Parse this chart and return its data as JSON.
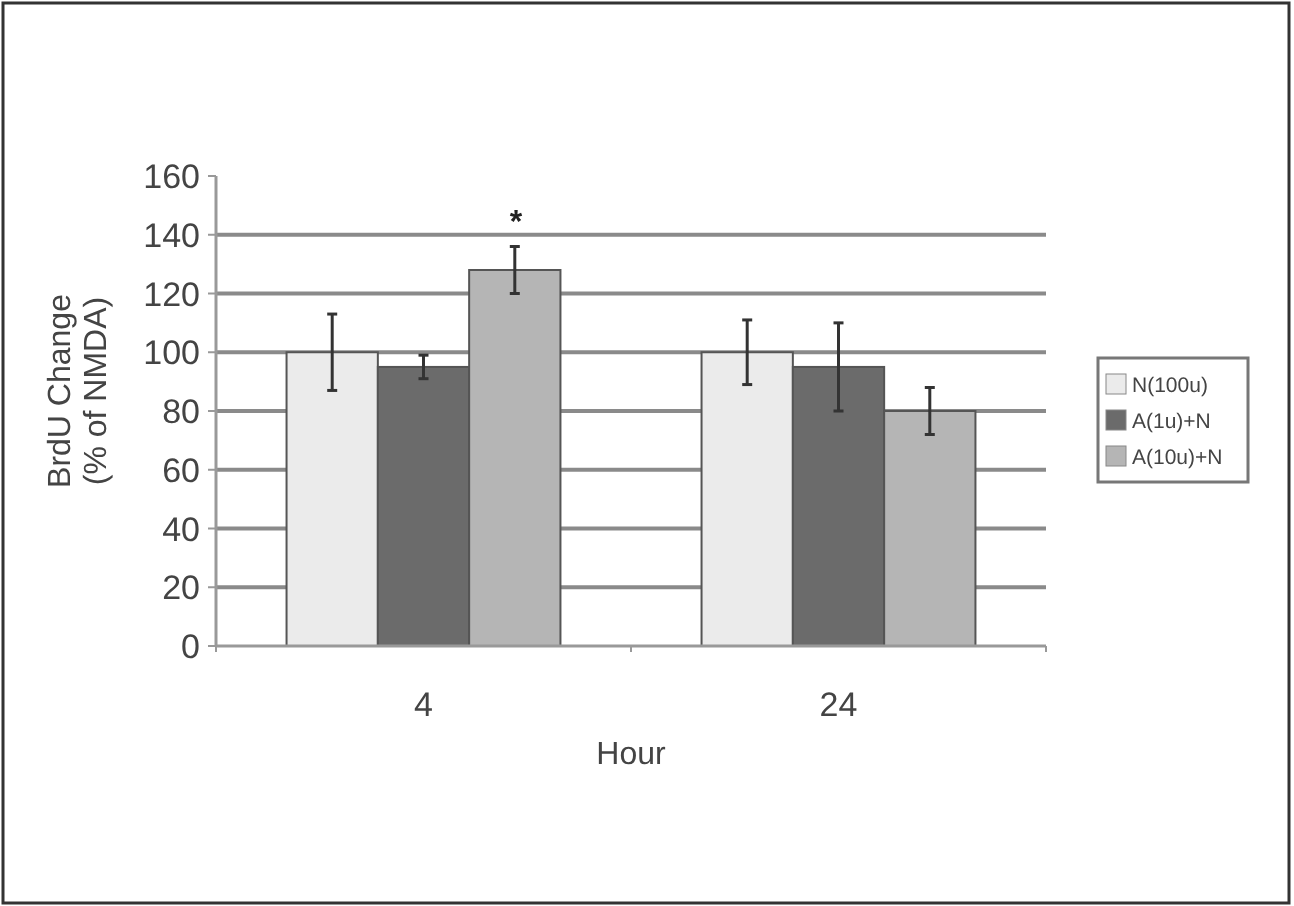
{
  "chart_data": {
    "type": "bar",
    "xlabel": "Hour",
    "ylabel": "BrdU Change\n(% of NMDA)",
    "categories": [
      "4",
      "24"
    ],
    "series": [
      {
        "name": "N(100u)",
        "color": "#ebebeb",
        "values": [
          100,
          100
        ],
        "errors": [
          13,
          11
        ]
      },
      {
        "name": "A(1u)+N",
        "color": "#6b6b6b",
        "values": [
          95,
          95
        ],
        "errors": [
          4,
          15
        ]
      },
      {
        "name": "A(10u)+N",
        "color": "#b5b5b5",
        "values": [
          128,
          80
        ],
        "errors": [
          8,
          8
        ]
      }
    ],
    "ylim": [
      0,
      160
    ],
    "yticks": [
      0,
      20,
      40,
      60,
      80,
      100,
      120,
      140,
      160
    ],
    "grid": "y",
    "legend": "right",
    "annotations": [
      "*"
    ]
  }
}
